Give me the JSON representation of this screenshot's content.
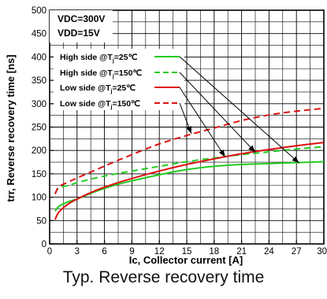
{
  "chart_data": {
    "type": "line",
    "caption": "Typ. Reverse recovery time",
    "xlabel": "Ic, Collector current [A]",
    "ylabel": "trr, Reverse recovery time [ns]",
    "xlim": [
      0,
      30
    ],
    "ylim": [
      0,
      500
    ],
    "xticks": [
      "0",
      "3",
      "6",
      "9",
      "12",
      "15",
      "18",
      "21",
      "24",
      "27",
      "30"
    ],
    "yticks": [
      "0",
      "50",
      "100",
      "150",
      "200",
      "250",
      "300",
      "350",
      "400",
      "450",
      "500"
    ],
    "grid": true,
    "conditions": [
      "VDC=300V",
      "VDD=15V"
    ],
    "legend_placement": "top-left",
    "series": [
      {
        "name": "High side @Tj=25℃",
        "color": "#22cc22",
        "dash": "solid",
        "x": [
          0.6,
          1,
          2,
          3,
          5,
          7,
          9,
          12,
          15,
          18,
          21,
          24,
          27,
          30
        ],
        "y": [
          70,
          80,
          90,
          96,
          112,
          125,
          135,
          148,
          159,
          166,
          170,
          172,
          174,
          176
        ]
      },
      {
        "name": "High side @Tj=150℃",
        "color": "#22cc22",
        "dash": "dashed",
        "x": [
          0.6,
          1,
          2,
          3,
          5,
          7,
          9,
          12,
          15,
          18,
          21,
          24,
          27,
          30
        ],
        "y": [
          107,
          120,
          125,
          131,
          141,
          149,
          156,
          166,
          176,
          184,
          191,
          197,
          203,
          208
        ]
      },
      {
        "name": "Low side @Tj=25℃",
        "color": "#dd1111",
        "dash": "solid",
        "x": [
          0.6,
          1,
          2,
          3,
          5,
          7,
          9,
          12,
          15,
          18,
          21,
          24,
          27,
          30
        ],
        "y": [
          52,
          68,
          85,
          96,
          114,
          128,
          140,
          156,
          170,
          182,
          193,
          202,
          210,
          217
        ]
      },
      {
        "name": "Low side @Tj=150℃",
        "color": "#dd1111",
        "dash": "dashed",
        "x": [
          0.6,
          1,
          2,
          3,
          5,
          7,
          9,
          12,
          15,
          18,
          21,
          24,
          27,
          30
        ],
        "y": [
          107,
          122,
          132,
          141,
          158,
          175,
          191,
          214,
          232,
          248,
          264,
          276,
          284,
          290
        ]
      }
    ],
    "annotation_targets": [
      {
        "series": 0,
        "x": 27.3,
        "y": 173
      },
      {
        "series": 1,
        "x": 22.5,
        "y": 196
      },
      {
        "series": 2,
        "x": 19.2,
        "y": 186
      },
      {
        "series": 3,
        "x": 15.5,
        "y": 236
      }
    ]
  }
}
